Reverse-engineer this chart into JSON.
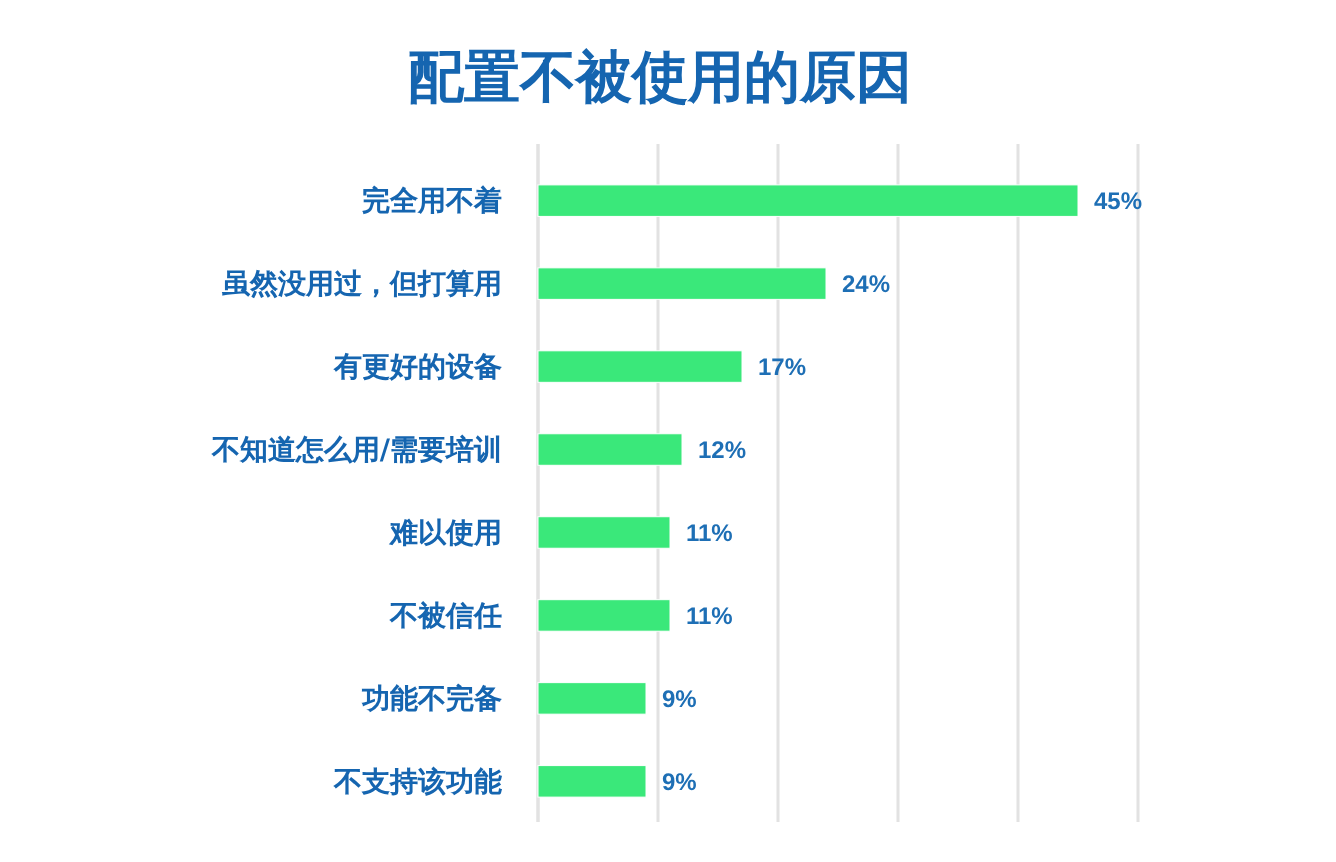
{
  "chart_data": {
    "type": "bar",
    "orientation": "horizontal",
    "title": "配置不被使用的原因",
    "categories": [
      "完全用不着",
      "虽然没用过，但打算用",
      "有更好的设备",
      "不知道怎么用/需要培训",
      "难以使用",
      "不被信任",
      "功能不完备",
      "不支持该功能"
    ],
    "values": [
      45,
      24,
      17,
      12,
      11,
      11,
      9,
      9
    ],
    "value_labels": [
      "45%",
      "24%",
      "17%",
      "12%",
      "11%",
      "11%",
      "9%",
      "9%"
    ],
    "color": "#3ae87a",
    "xlim": [
      0,
      50
    ],
    "xticks": [
      {
        "value": 0,
        "label": null
      },
      {
        "value": 10,
        "label": null
      },
      {
        "value": 20,
        "label": null
      },
      {
        "value": 30,
        "label": null
      },
      {
        "value": 40,
        "label": null
      },
      {
        "value": 50,
        "label": null
      }
    ],
    "grid": "x",
    "tick_labels": "y"
  }
}
